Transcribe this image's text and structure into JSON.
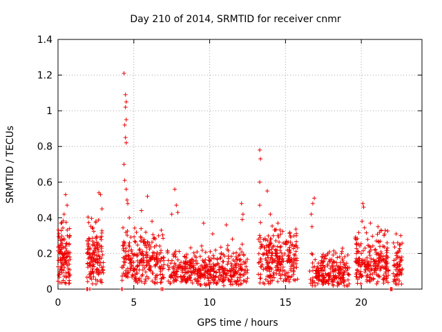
{
  "chart_data": {
    "type": "scatter",
    "title": "Day 210 of 2014, SRMTID for receiver cnmr",
    "xlabel": "GPS time / hours",
    "ylabel": "SRMTID / TECUs",
    "xlim": [
      0,
      24
    ],
    "ylim": [
      0,
      1.4
    ],
    "x_ticks": [
      0,
      5,
      10,
      15,
      20
    ],
    "y_ticks": [
      0,
      0.2,
      0.4,
      0.6,
      0.8,
      1,
      1.2,
      1.4
    ],
    "x_tick_labels": [
      "0",
      "5",
      "10",
      "15",
      "20"
    ],
    "y_tick_labels": [
      "0",
      "0.2",
      "0.4",
      "0.6",
      "0.8",
      "1",
      "1.2",
      "1.4"
    ],
    "grid": true,
    "marker": "+",
    "color": "#ee0000",
    "seed": 210,
    "clusters": [
      {
        "start": 0.0,
        "end": 0.8,
        "n": 120,
        "base": 0.12,
        "spread": 0.22,
        "peaks": [
          [
            0.5,
            0.53
          ],
          [
            0.6,
            0.47
          ],
          [
            0.4,
            0.42
          ],
          [
            0.2,
            0.37
          ]
        ]
      },
      {
        "start": 1.9,
        "end": 2.1,
        "n": 4,
        "base": 0.0,
        "spread": 0.0,
        "peaks": []
      },
      {
        "start": 1.9,
        "end": 3.0,
        "n": 140,
        "base": 0.14,
        "spread": 0.22,
        "peaks": [
          [
            2.7,
            0.54
          ],
          [
            2.8,
            0.53
          ],
          [
            2.9,
            0.45
          ],
          [
            2.5,
            0.38
          ]
        ]
      },
      {
        "start": 4.2,
        "end": 4.3,
        "n": 3,
        "base": 0.0,
        "spread": 0.0,
        "peaks": []
      },
      {
        "start": 4.2,
        "end": 7.0,
        "n": 250,
        "base": 0.12,
        "spread": 0.2,
        "peaks": [
          [
            4.35,
            1.21
          ],
          [
            4.45,
            1.09
          ],
          [
            4.5,
            1.05
          ],
          [
            4.45,
            1.02
          ],
          [
            4.5,
            0.95
          ],
          [
            4.4,
            0.92
          ],
          [
            4.45,
            0.85
          ],
          [
            4.5,
            0.82
          ],
          [
            4.35,
            0.7
          ],
          [
            4.4,
            0.61
          ],
          [
            4.5,
            0.56
          ],
          [
            4.55,
            0.5
          ],
          [
            4.6,
            0.48
          ],
          [
            4.7,
            0.4
          ],
          [
            5.9,
            0.52
          ],
          [
            5.5,
            0.44
          ],
          [
            6.2,
            0.38
          ]
        ]
      },
      {
        "start": 6.8,
        "end": 7.0,
        "n": 3,
        "base": 0.0,
        "spread": 0.0,
        "peaks": []
      },
      {
        "start": 7.2,
        "end": 12.5,
        "n": 420,
        "base": 0.08,
        "spread": 0.14,
        "peaks": [
          [
            7.7,
            0.56
          ],
          [
            7.8,
            0.47
          ],
          [
            7.9,
            0.43
          ],
          [
            7.5,
            0.42
          ],
          [
            9.6,
            0.37
          ],
          [
            10.2,
            0.31
          ],
          [
            11.1,
            0.36
          ],
          [
            12.1,
            0.48
          ],
          [
            12.2,
            0.42
          ],
          [
            12.15,
            0.39
          ],
          [
            11.5,
            0.28
          ]
        ]
      },
      {
        "start": 13.2,
        "end": 15.8,
        "n": 260,
        "base": 0.12,
        "spread": 0.22,
        "peaks": [
          [
            13.3,
            0.78
          ],
          [
            13.35,
            0.73
          ],
          [
            13.3,
            0.6
          ],
          [
            13.3,
            0.47
          ],
          [
            13.8,
            0.55
          ],
          [
            14.0,
            0.42
          ],
          [
            14.5,
            0.37
          ]
        ]
      },
      {
        "start": 16.6,
        "end": 19.2,
        "n": 220,
        "base": 0.07,
        "spread": 0.14,
        "peaks": [
          [
            16.9,
            0.51
          ],
          [
            16.8,
            0.48
          ],
          [
            16.7,
            0.42
          ],
          [
            16.75,
            0.35
          ],
          [
            18.7,
            0.2
          ]
        ]
      },
      {
        "start": 19.6,
        "end": 21.8,
        "n": 220,
        "base": 0.1,
        "spread": 0.2,
        "peaks": [
          [
            20.1,
            0.48
          ],
          [
            20.15,
            0.46
          ],
          [
            20.05,
            0.38
          ],
          [
            20.6,
            0.37
          ],
          [
            21.1,
            0.35
          ],
          [
            21.3,
            0.33
          ],
          [
            21.5,
            0.3
          ]
        ]
      },
      {
        "start": 22.1,
        "end": 22.7,
        "n": 60,
        "base": 0.1,
        "spread": 0.15,
        "peaks": [
          [
            22.3,
            0.31
          ],
          [
            22.6,
            0.3
          ],
          [
            22.4,
            0.26
          ]
        ]
      },
      {
        "start": 21.9,
        "end": 22.1,
        "n": 3,
        "base": 0.0,
        "spread": 0.0,
        "peaks": []
      }
    ]
  }
}
